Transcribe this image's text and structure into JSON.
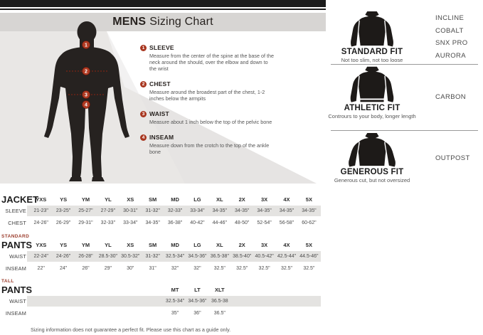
{
  "header": {
    "title_bold": "MENS",
    "title_regular": "Sizing Chart"
  },
  "measurements": [
    {
      "num": "1",
      "name": "SLEEVE",
      "desc": "Measure from the center of the spine at the base of the neck around the should, over the elbow and down to the wrist"
    },
    {
      "num": "2",
      "name": "CHEST",
      "desc": "Measure around the broadest part of the chest, 1-2 inches below the armpits"
    },
    {
      "num": "3",
      "name": "WAIST",
      "desc": "Measure about 1 inch below the top of the pelvic bone"
    },
    {
      "num": "4",
      "name": "INSEAM",
      "desc": "Measure down from the crotch to the top of the ankle bone"
    }
  ],
  "fits": [
    {
      "name": "STANDARD FIT",
      "desc": "Not too slim, not too loose",
      "products": [
        "INCLINE",
        "COBALT",
        "SNX PRO",
        "AURORA"
      ]
    },
    {
      "name": "ATHLETIC FIT",
      "desc": "Contrours to your body, longer length",
      "products": [
        "CARBON"
      ]
    },
    {
      "name": "GENEROUS FIT",
      "desc": "Generous cut, but not oversized",
      "products": [
        "OUTPOST"
      ]
    }
  ],
  "tables": [
    {
      "label_top": "",
      "label": "JACKET",
      "sizes": [
        "YXS",
        "YS",
        "YM",
        "YL",
        "XS",
        "SM",
        "MD",
        "LG",
        "XL",
        "2X",
        "3X",
        "4X",
        "5X"
      ],
      "rows": [
        {
          "label": "SLEEVE",
          "values": [
            "21-23\"",
            "23-25\"",
            "25-27\"",
            "27-29\"",
            "30-31\"",
            "31-32\"",
            "32-33\"",
            "33-34\"",
            "34-35\"",
            "34-35\"",
            "34-35\"",
            "34-35\"",
            "34-35\""
          ]
        },
        {
          "label": "CHEST",
          "values": [
            "24-26\"",
            "26-29\"",
            "29-31\"",
            "32-33\"",
            "33-34\"",
            "34-35\"",
            "36-38\"",
            "40-42\"",
            "44-46\"",
            "48-50\"",
            "52-54\"",
            "56-58\"",
            "60-62\""
          ]
        }
      ]
    },
    {
      "label_top": "STANDARD",
      "label": "PANTS",
      "sizes": [
        "YXS",
        "YS",
        "YM",
        "YL",
        "XS",
        "SM",
        "MD",
        "LG",
        "XL",
        "2X",
        "3X",
        "4X",
        "5X"
      ],
      "rows": [
        {
          "label": "WAIST",
          "values": [
            "22-24\"",
            "24-26\"",
            "26-28\"",
            "28.5-30\"",
            "30.5-32\"",
            "31-32\"",
            "32.5-34\"",
            "34.5-36\"",
            "36.5-38\"",
            "38.5-40\"",
            "40.5-42\"",
            "42.5-44\"",
            "44.5-46\""
          ]
        },
        {
          "label": "INSEAM",
          "values": [
            "22\"",
            "24\"",
            "26\"",
            "29\"",
            "30\"",
            "31\"",
            "32\"",
            "32\"",
            "32.5\"",
            "32.5\"",
            "32.5\"",
            "32.5\"",
            "32.5\""
          ]
        }
      ]
    },
    {
      "label_top": "TALL",
      "label": "PANTS",
      "sizes": [
        "",
        "",
        "",
        "",
        "",
        "",
        "MT",
        "LT",
        "XLT",
        "",
        "",
        "",
        ""
      ],
      "rows": [
        {
          "label": "WAIST",
          "values": [
            "",
            "",
            "",
            "",
            "",
            "",
            "32.5-34\"",
            "34.5-36\"",
            "36.5-38",
            "",
            "",
            "",
            ""
          ]
        },
        {
          "label": "INSEAM",
          "values": [
            "",
            "",
            "",
            "",
            "",
            "",
            "35\"",
            "36\"",
            "36.5\"",
            "",
            "",
            "",
            ""
          ]
        }
      ]
    }
  ],
  "footer": "Sizing information does not guarantee a perfect fit. Please use this chart as a guide only.",
  "colors": {
    "accent_red": "#a8361f",
    "band_gray": "#e4e3e1",
    "banner_gray": "#d7d5d3",
    "silhouette": "#262220"
  }
}
